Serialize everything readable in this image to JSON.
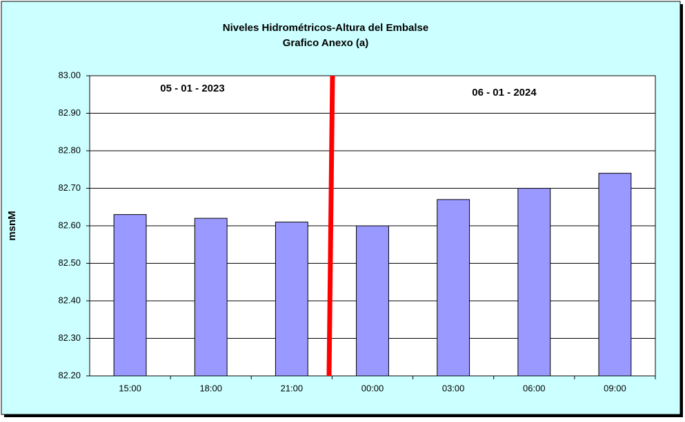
{
  "chart_data": {
    "type": "bar",
    "title": "Niveles Hidrométricos-Altura del Embalse",
    "subtitle": "Grafico Anexo (a)",
    "y_label": "msnM",
    "annotations": [
      "05 - 01 - 2023",
      "06 - 01 - 2024"
    ],
    "categories": [
      "15:00",
      "18:00",
      "21:00",
      "00:00",
      "03:00",
      "06:00",
      "09:00"
    ],
    "values": [
      82.63,
      82.62,
      82.61,
      82.6,
      82.67,
      82.7,
      82.74
    ],
    "color": "#9999ff",
    "ylim": [
      82.2,
      83.0
    ],
    "yticks": [
      {
        "value": 82.2,
        "label": "82.20"
      },
      {
        "value": 82.3,
        "label": "82.30"
      },
      {
        "value": 82.4,
        "label": "82.40"
      },
      {
        "value": 82.5,
        "label": "82.50"
      },
      {
        "value": 82.6,
        "label": "82.60"
      },
      {
        "value": 82.7,
        "label": "82.70"
      },
      {
        "value": 82.8,
        "label": "82.80"
      },
      {
        "value": 82.9,
        "label": "82.90"
      },
      {
        "value": 83.0,
        "label": "83.00"
      }
    ],
    "grid": true
  }
}
